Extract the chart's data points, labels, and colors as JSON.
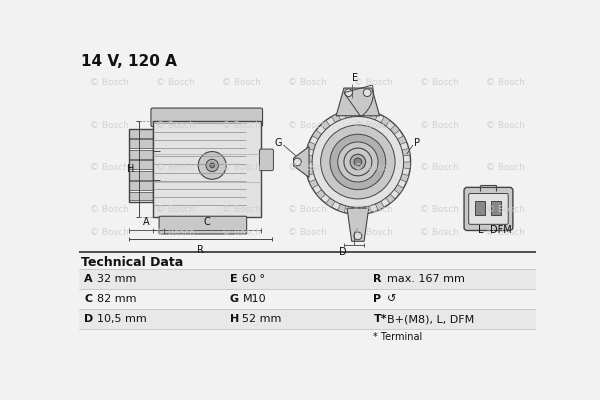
{
  "title": "14 V, 120 A",
  "background_color": "#f2f2f2",
  "watermark_text": "© Bosch",
  "watermark_color": "#cccccc",
  "table_title": "Technical Data",
  "table_rows": [
    [
      "A",
      "32 mm",
      "E",
      "60 °",
      "R",
      "max. 167 mm"
    ],
    [
      "C",
      "82 mm",
      "G",
      "M10",
      "P",
      "↺"
    ],
    [
      "D",
      "10,5 mm",
      "H",
      "52 mm",
      "T*",
      "B+(M8), L, DFM"
    ]
  ],
  "footnote": "* Terminal",
  "line_color": "#444444",
  "text_color": "#111111",
  "table_line_color": "#bbbbbb",
  "body_fill": "#e2e2e2",
  "body_dark": "#b0b0b0",
  "body_mid": "#c8c8c8"
}
